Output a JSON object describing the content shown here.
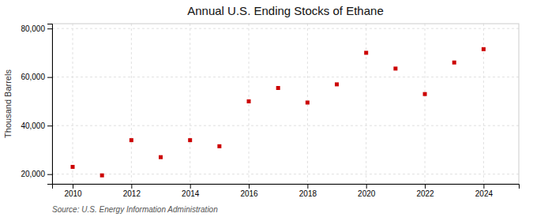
{
  "chart_data": {
    "type": "scatter",
    "title": "Annual U.S. Ending Stocks of Ethane",
    "ylabel": "Thousand Barrels",
    "source": "Source: U.S. Energy Information Administration",
    "x": [
      2010,
      2011,
      2012,
      2013,
      2014,
      2015,
      2016,
      2017,
      2018,
      2019,
      2020,
      2021,
      2022,
      2023,
      2024
    ],
    "values": [
      23000,
      19500,
      34000,
      27000,
      34000,
      31500,
      50000,
      55500,
      49500,
      57000,
      70000,
      63500,
      53000,
      66000,
      71500
    ],
    "color": "#cc0000",
    "marker": "square",
    "xlim": [
      2009.3,
      2025.2
    ],
    "ylim": [
      16000,
      82000
    ],
    "xticks": [
      2010,
      2012,
      2014,
      2016,
      2018,
      2020,
      2022,
      2024
    ],
    "yticks": [
      {
        "value": 20000,
        "label": "20,000"
      },
      {
        "value": 40000,
        "label": "40,000"
      },
      {
        "value": 60000,
        "label": "60,000"
      },
      {
        "value": 80000,
        "label": "80,000"
      }
    ],
    "grid": true
  }
}
